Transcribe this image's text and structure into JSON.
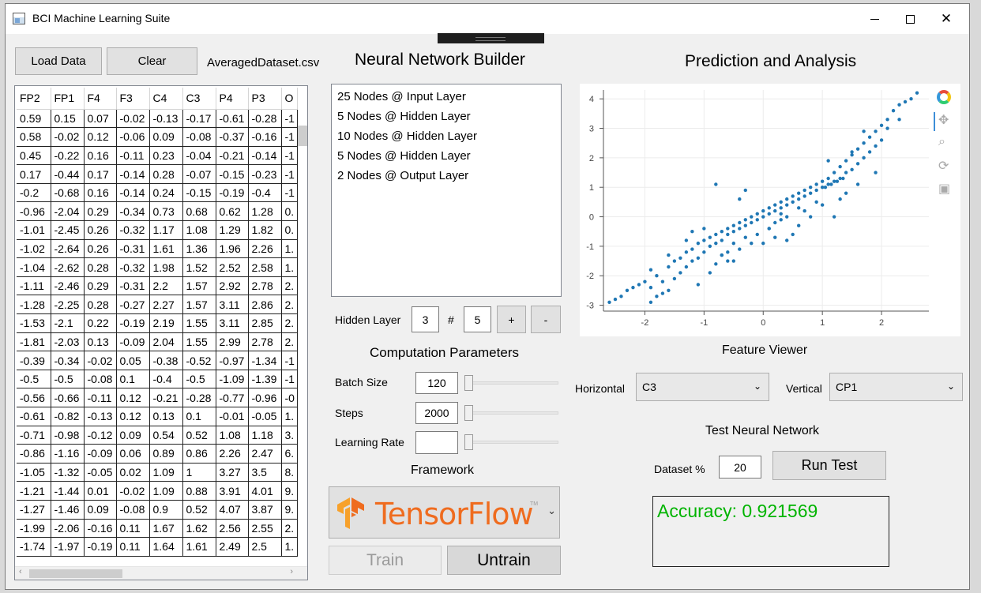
{
  "window": {
    "title": "BCI Machine Learning Suite"
  },
  "left": {
    "load_label": "Load Data",
    "clear_label": "Clear",
    "filename": "AveragedDataset.csv",
    "columns": [
      "FP2",
      "FP1",
      "F4",
      "F3",
      "C4",
      "C3",
      "P4",
      "P3",
      "O"
    ],
    "rows": [
      [
        "0.59",
        "0.15",
        "0.07",
        "-0.02",
        "-0.13",
        "-0.17",
        "-0.61",
        "-0.28",
        "-1"
      ],
      [
        "0.58",
        "-0.02",
        "0.12",
        "-0.06",
        "0.09",
        "-0.08",
        "-0.37",
        "-0.16",
        "-1"
      ],
      [
        "0.45",
        "-0.22",
        "0.16",
        "-0.11",
        "0.23",
        "-0.04",
        "-0.21",
        "-0.14",
        "-1"
      ],
      [
        "0.17",
        "-0.44",
        "0.17",
        "-0.14",
        "0.28",
        "-0.07",
        "-0.15",
        "-0.23",
        "-1"
      ],
      [
        "-0.2",
        "-0.68",
        "0.16",
        "-0.14",
        "0.24",
        "-0.15",
        "-0.19",
        "-0.4",
        "-1"
      ],
      [
        "-0.96",
        "-2.04",
        "0.29",
        "-0.34",
        "0.73",
        "0.68",
        "0.62",
        "1.28",
        "0."
      ],
      [
        "-1.01",
        "-2.45",
        "0.26",
        "-0.32",
        "1.17",
        "1.08",
        "1.29",
        "1.82",
        "0."
      ],
      [
        "-1.02",
        "-2.64",
        "0.26",
        "-0.31",
        "1.61",
        "1.36",
        "1.96",
        "2.26",
        "1."
      ],
      [
        "-1.04",
        "-2.62",
        "0.28",
        "-0.32",
        "1.98",
        "1.52",
        "2.52",
        "2.58",
        "1."
      ],
      [
        "-1.11",
        "-2.46",
        "0.29",
        "-0.31",
        "2.2",
        "1.57",
        "2.92",
        "2.78",
        "2."
      ],
      [
        "-1.28",
        "-2.25",
        "0.28",
        "-0.27",
        "2.27",
        "1.57",
        "3.11",
        "2.86",
        "2."
      ],
      [
        "-1.53",
        "-2.1",
        "0.22",
        "-0.19",
        "2.19",
        "1.55",
        "3.11",
        "2.85",
        "2."
      ],
      [
        "-1.81",
        "-2.03",
        "0.13",
        "-0.09",
        "2.04",
        "1.55",
        "2.99",
        "2.78",
        "2."
      ],
      [
        "-0.39",
        "-0.34",
        "-0.02",
        "0.05",
        "-0.38",
        "-0.52",
        "-0.97",
        "-1.34",
        "-1"
      ],
      [
        "-0.5",
        "-0.5",
        "-0.08",
        "0.1",
        "-0.4",
        "-0.5",
        "-1.09",
        "-1.39",
        "-1"
      ],
      [
        "-0.56",
        "-0.66",
        "-0.11",
        "0.12",
        "-0.21",
        "-0.28",
        "-0.77",
        "-0.96",
        "-0"
      ],
      [
        "-0.61",
        "-0.82",
        "-0.13",
        "0.12",
        "0.13",
        "0.1",
        "-0.01",
        "-0.05",
        "1."
      ],
      [
        "-0.71",
        "-0.98",
        "-0.12",
        "0.09",
        "0.54",
        "0.52",
        "1.08",
        "1.18",
        "3."
      ],
      [
        "-0.86",
        "-1.16",
        "-0.09",
        "0.06",
        "0.89",
        "0.86",
        "2.26",
        "2.47",
        "6."
      ],
      [
        "-1.05",
        "-1.32",
        "-0.05",
        "0.02",
        "1.09",
        "1",
        "3.27",
        "3.5",
        "8."
      ],
      [
        "-1.21",
        "-1.44",
        "0.01",
        "-0.02",
        "1.09",
        "0.88",
        "3.91",
        "4.01",
        "9."
      ],
      [
        "-1.27",
        "-1.46",
        "0.09",
        "-0.08",
        "0.9",
        "0.52",
        "4.07",
        "3.87",
        "9."
      ],
      [
        "-1.99",
        "-2.06",
        "-0.16",
        "0.11",
        "1.67",
        "1.62",
        "2.56",
        "2.55",
        "2."
      ],
      [
        "-1.74",
        "-1.97",
        "-0.19",
        "0.11",
        "1.64",
        "1.61",
        "2.49",
        "2.5",
        "1."
      ]
    ]
  },
  "builder": {
    "title": "Neural Network Builder",
    "layers": [
      "25 Nodes @ Input Layer",
      "5 Nodes @ Hidden Layer",
      "10 Nodes @ Hidden Layer",
      "5 Nodes @ Hidden Layer",
      "2 Nodes @ Output Layer"
    ],
    "hidden_layer_label": "Hidden Layer",
    "hidden_layer_value": "3",
    "hash_label": "#",
    "node_count_value": "5",
    "plus_label": "+",
    "minus_label": "-",
    "params_title": "Computation Parameters",
    "batch_label": "Batch Size",
    "batch_value": "120",
    "steps_label": "Steps",
    "steps_value": "2000",
    "lr_label": "Learning Rate",
    "lr_value": "",
    "framework_title": "Framework",
    "framework_value": "TensorFlow",
    "framework_tm": "TM",
    "train_label": "Train",
    "untrain_label": "Untrain"
  },
  "analysis": {
    "title": "Prediction and Analysis",
    "feature_title": "Feature Viewer",
    "horizontal_label": "Horizontal",
    "horizontal_value": "C3",
    "vertical_label": "Vertical",
    "vertical_value": "CP1",
    "test_title": "Test Neural Network",
    "dataset_label": "Dataset %",
    "dataset_value": "20",
    "run_label": "Run Test",
    "accuracy_text": "Accuracy: 0.921569",
    "accuracy_color": "#00b400",
    "toolbar_icons": [
      "bokeh-logo-icon",
      "pan-icon",
      "zoom-icon",
      "reset-icon",
      "save-icon"
    ]
  },
  "chart_data": {
    "type": "scatter",
    "title": "",
    "xlabel": "",
    "ylabel": "",
    "xlim": [
      -2.7,
      2.8
    ],
    "ylim": [
      -3.2,
      4.3
    ],
    "xticks": [
      "-2",
      "-1",
      "0",
      "1",
      "2"
    ],
    "yticks": [
      "-3",
      "-2",
      "-1",
      "0",
      "1",
      "2",
      "3",
      "4"
    ],
    "grid": true,
    "point_color": "#1f77b4",
    "series": [
      {
        "x": [
          -2.6,
          -2.5,
          -2.4,
          -2.3,
          -2.2,
          -2.1,
          -2.0,
          -1.9,
          -1.9,
          -1.8,
          -1.8,
          -1.7,
          -1.6,
          -1.6,
          -1.5,
          -1.5,
          -1.4,
          -1.4,
          -1.3,
          -1.3,
          -1.2,
          -1.2,
          -1.1,
          -1.1,
          -1.0,
          -1.0,
          -0.9,
          -0.9,
          -0.8,
          -0.8,
          -0.7,
          -0.7,
          -0.6,
          -0.6,
          -0.5,
          -0.5,
          -0.4,
          -0.4,
          -0.3,
          -0.3,
          -0.2,
          -0.2,
          -0.1,
          -0.1,
          0.0,
          0.0,
          0.1,
          0.1,
          0.2,
          0.2,
          0.3,
          0.3,
          0.4,
          0.4,
          0.5,
          0.5,
          0.6,
          0.6,
          0.7,
          0.7,
          0.8,
          0.8,
          0.9,
          0.9,
          1.0,
          1.0,
          1.1,
          1.1,
          1.2,
          1.2,
          1.3,
          1.3,
          1.4,
          1.4,
          1.5,
          1.5,
          1.6,
          1.6,
          1.7,
          1.7,
          1.8,
          1.8,
          1.9,
          1.9,
          2.0,
          2.0,
          2.1,
          2.2,
          2.3,
          2.4,
          2.5,
          2.6,
          -1.9,
          -1.6,
          -1.3,
          -1.0,
          -0.7,
          -0.4,
          0.2,
          0.6,
          1.2,
          1.5,
          1.6,
          1.9,
          -1.2,
          -0.8,
          -0.3,
          0.3,
          0.7,
          1.3,
          -0.9,
          -0.5,
          0.1,
          0.5,
          1.0,
          1.4,
          -1.7,
          -1.1,
          -0.6,
          0.0,
          0.4,
          0.8,
          1.1,
          1.7,
          2.1,
          2.3,
          -0.2,
          -0.1,
          0.1,
          0.2,
          -0.4,
          -0.3,
          -0.6,
          -0.5,
          -0.8,
          -0.7,
          0.3,
          0.4,
          0.6,
          0.9,
          1.05,
          1.15,
          1.25,
          1.35
        ],
        "y": [
          -2.9,
          -2.8,
          -2.7,
          -2.5,
          -2.4,
          -2.3,
          -2.2,
          -2.9,
          -2.4,
          -2.7,
          -2.0,
          -2.2,
          -1.7,
          -2.5,
          -1.5,
          -2.1,
          -1.4,
          -1.9,
          -1.2,
          -1.7,
          -1.1,
          -1.5,
          -0.9,
          -1.4,
          -0.8,
          -1.2,
          -0.7,
          -1.0,
          -0.6,
          -0.9,
          -0.5,
          -0.8,
          -0.4,
          -0.6,
          -0.3,
          -0.5,
          -0.2,
          -0.4,
          -0.1,
          -0.3,
          0.0,
          -0.2,
          0.1,
          -0.1,
          0.2,
          0.0,
          0.3,
          0.1,
          0.4,
          0.2,
          0.5,
          0.3,
          0.6,
          0.4,
          0.7,
          0.5,
          0.8,
          0.6,
          0.9,
          0.7,
          1.0,
          0.8,
          1.1,
          0.9,
          1.2,
          1.0,
          1.3,
          1.1,
          1.5,
          1.2,
          1.7,
          1.3,
          1.9,
          1.5,
          2.1,
          1.6,
          2.3,
          1.8,
          2.5,
          2.0,
          2.7,
          2.2,
          2.9,
          2.4,
          3.1,
          2.6,
          3.3,
          3.6,
          3.8,
          3.9,
          4.0,
          4.2,
          -1.8,
          -1.3,
          -0.8,
          -0.4,
          -1.3,
          0.6,
          -0.7,
          -0.3,
          0.0,
          2.2,
          1.1,
          1.5,
          -0.5,
          1.1,
          0.9,
          -0.1,
          0.2,
          0.6,
          -1.9,
          -1.5,
          -0.4,
          -0.6,
          0.4,
          0.8,
          -2.6,
          -2.3,
          -1.5,
          -0.9,
          -0.8,
          0.0,
          1.9,
          2.9,
          3.0,
          3.3,
          -0.9,
          -0.6,
          -0.4,
          -0.2,
          -1.1,
          -0.7,
          -1.2,
          -0.9,
          -1.6,
          -1.3,
          0.1,
          0.0,
          0.3,
          0.5,
          1.0,
          1.1,
          1.2,
          1.3
        ]
      }
    ]
  }
}
